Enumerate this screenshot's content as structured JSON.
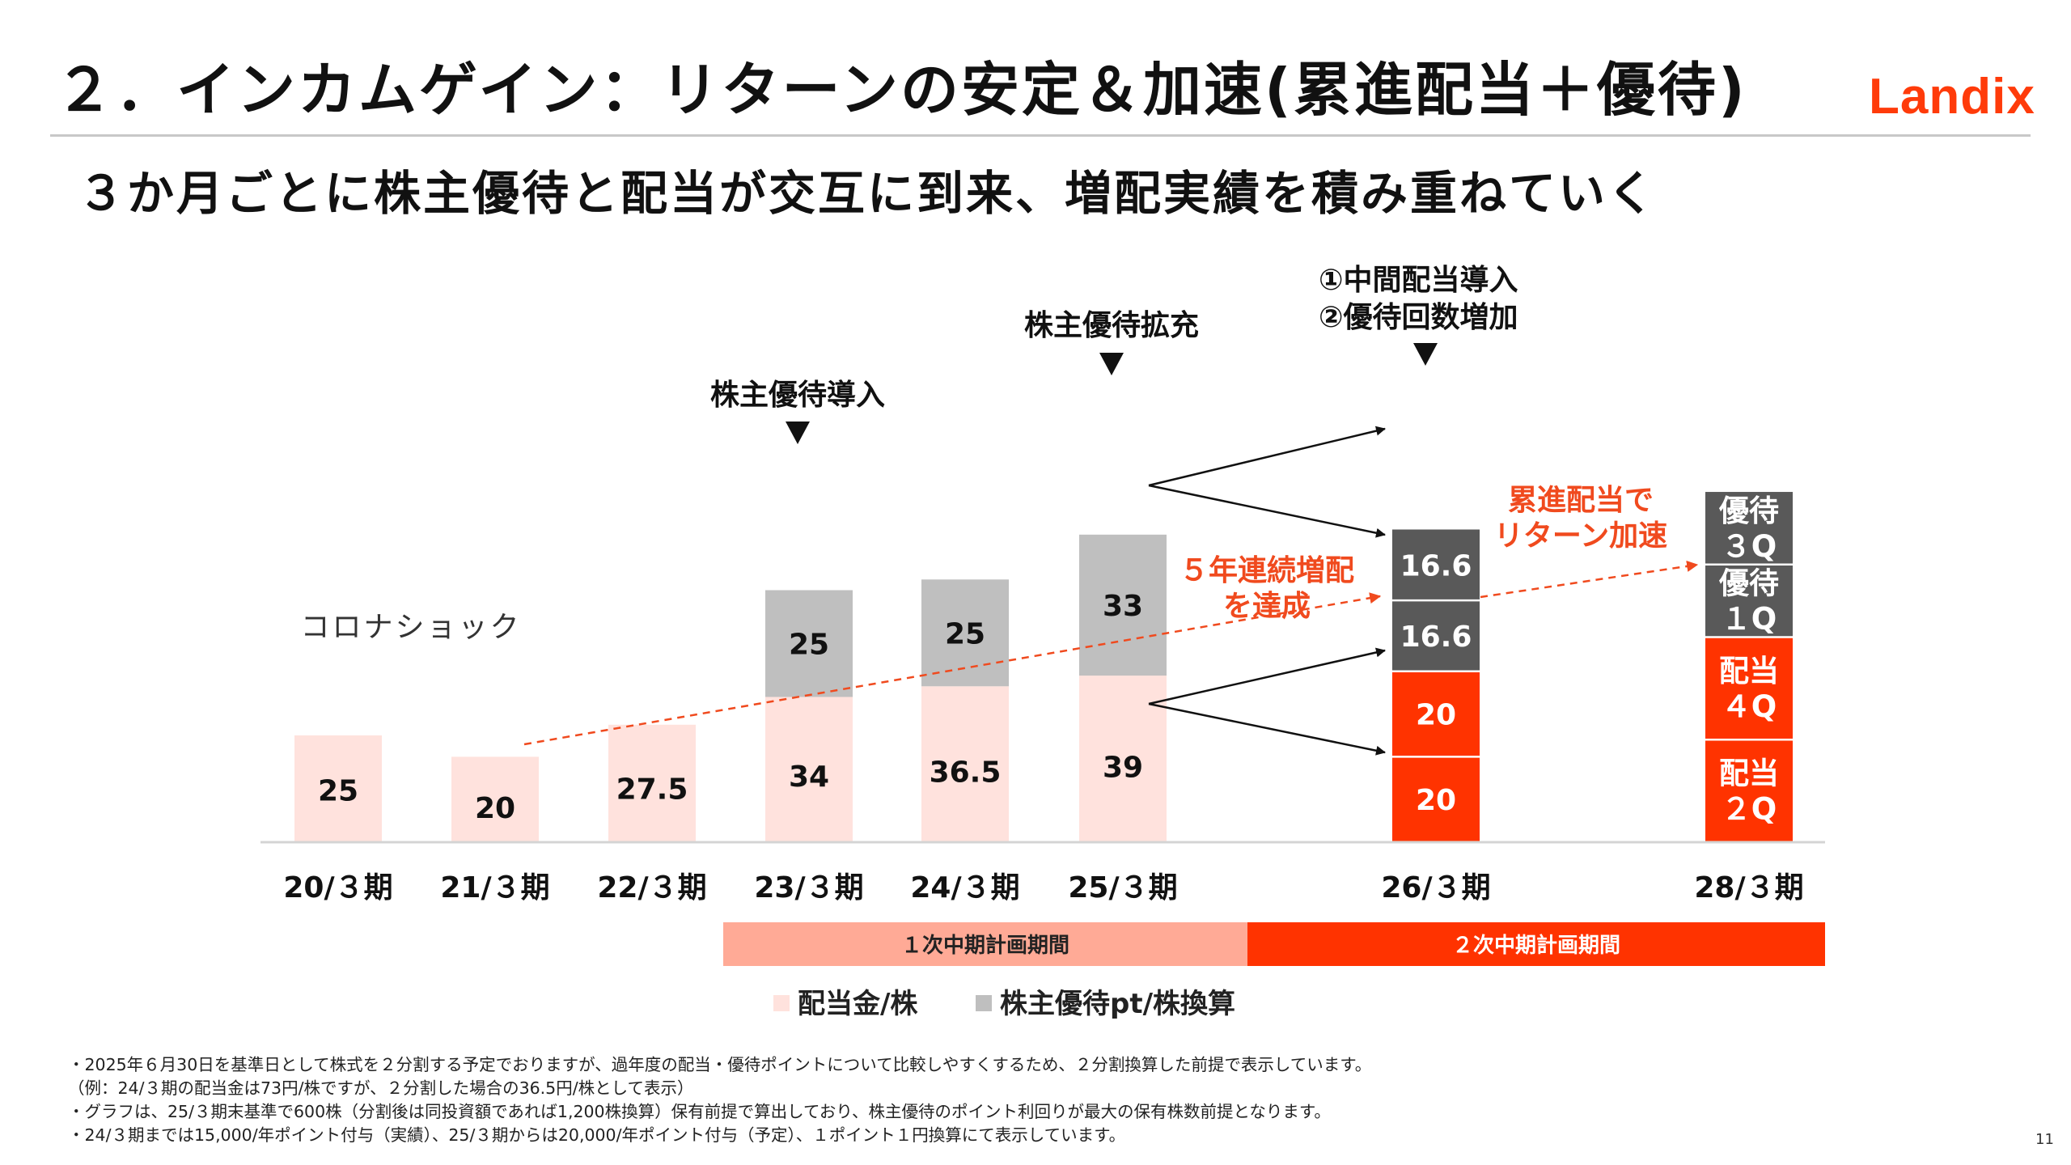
{
  "header": {
    "title": "２．インカムゲイン：リターンの安定＆加速(累進配当＋優待)",
    "logo": "Landix",
    "subtitle": "３か月ごとに株主優待と配当が交互に到来、増配実績を積み重ねていく"
  },
  "colors": {
    "accent": "#ff3300",
    "dividend_light": "#ffe2dd",
    "benefit_light": "#bfbfbf",
    "benefit_dark": "#595959",
    "plan1": "#ffaa96",
    "plan2": "#ff3300",
    "annotation_text": "#f04a1e"
  },
  "chart_data": {
    "type": "bar",
    "stacked": true,
    "categories": [
      "20/３期",
      "21/３期",
      "22/３期",
      "23/３期",
      "24/３期",
      "25/３期",
      "26/３期",
      "28/３期"
    ],
    "ylim": [
      0,
      110
    ],
    "bars": [
      {
        "category": "20/３期",
        "segments": [
          {
            "value": 25,
            "label": "25",
            "kind": "dividend"
          }
        ]
      },
      {
        "category": "21/３期",
        "segments": [
          {
            "value": 20,
            "label": "20",
            "kind": "dividend"
          }
        ]
      },
      {
        "category": "22/３期",
        "segments": [
          {
            "value": 27.5,
            "label": "27.5",
            "kind": "dividend"
          }
        ]
      },
      {
        "category": "23/３期",
        "segments": [
          {
            "value": 34,
            "label": "34",
            "kind": "dividend"
          },
          {
            "value": 25,
            "label": "25",
            "kind": "benefit"
          }
        ]
      },
      {
        "category": "24/３期",
        "segments": [
          {
            "value": 36.5,
            "label": "36.5",
            "kind": "dividend"
          },
          {
            "value": 25,
            "label": "25",
            "kind": "benefit"
          }
        ]
      },
      {
        "category": "25/３期",
        "segments": [
          {
            "value": 39,
            "label": "39",
            "kind": "dividend"
          },
          {
            "value": 33,
            "label": "33",
            "kind": "benefit"
          }
        ]
      },
      {
        "category": "26/３期",
        "segments": [
          {
            "value": 20,
            "label": "20",
            "kind": "dividend2"
          },
          {
            "value": 20,
            "label": "20",
            "kind": "dividend2"
          },
          {
            "value": 16.6,
            "label": "16.6",
            "kind": "benefit2"
          },
          {
            "value": 16.6,
            "label": "16.6",
            "kind": "benefit2"
          }
        ]
      },
      {
        "category": "28/３期",
        "segments": [
          {
            "value": 24,
            "label": "配当\n２Q",
            "kind": "dividend2"
          },
          {
            "value": 24,
            "label": "配当\n４Q",
            "kind": "dividend2"
          },
          {
            "value": 17,
            "label": "優待\n１Q",
            "kind": "benefit2"
          },
          {
            "value": 17,
            "label": "優待\n３Q",
            "kind": "benefit2"
          }
        ]
      }
    ],
    "legend": [
      "配当金/株",
      "株主優待pt/株換算"
    ],
    "annotations": {
      "corona": "コロナショック",
      "benefit_intro": "株主優待導入",
      "benefit_expand": "株主優待拡充",
      "interim_1": "①中間配当導入",
      "interim_2": "②優待回数増加",
      "consecutive_1": "５年連続増配",
      "consecutive_2": "を達成",
      "progressive_1": "累進配当で",
      "progressive_2": "リターン加速"
    },
    "periods": [
      {
        "label": "１次中期計画期間",
        "from": "23/３期",
        "to": "25/３期"
      },
      {
        "label": "２次中期計画期間",
        "from": "26/３期",
        "to": "28/３期"
      }
    ]
  },
  "footnotes": [
    "・2025年６月30日を基準日として株式を２分割する予定でおりますが、過年度の配当・優待ポイントについて比較しやすくするため、２分割換算した前提で表示しています。",
    "（例：24/３期の配当金は73円/株ですが、２分割した場合の36.5円/株として表示）",
    "・グラフは、25/３期末基準で600株（分割後は同投資額であれば1,200株換算）保有前提で算出しており、株主優待のポイント利回りが最大の保有株数前提となります。",
    "・24/３期までは15,000/年ポイント付与（実績）、25/３期からは20,000/年ポイント付与（予定）、１ポイント１円換算にて表示しています。"
  ],
  "page_number": "11"
}
